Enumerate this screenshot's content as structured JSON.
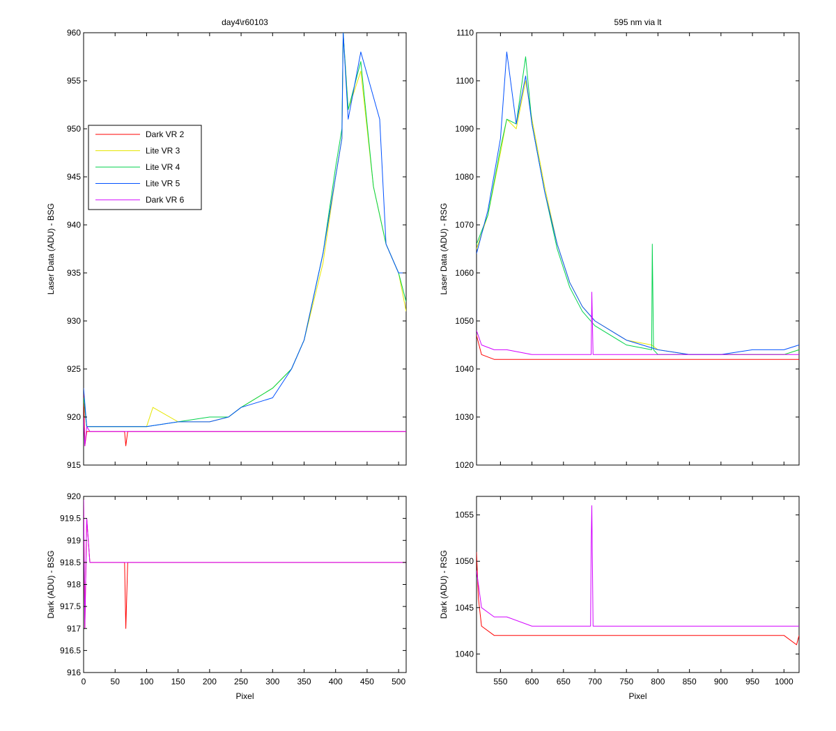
{
  "figure": {
    "colors": {
      "Dark VR 2": "#ff0000",
      "Lite VR 3": "#e6e600",
      "Lite VR 4": "#00d24b",
      "Lite VR 5": "#0050ff",
      "Dark VR 6": "#d200ff"
    }
  },
  "chart_data": [
    {
      "id": "top-left",
      "type": "line",
      "title": "day4\\r60103",
      "xlabel": "",
      "ylabel": "Laser Data (ADU) - BSG",
      "xlim": [
        0,
        512
      ],
      "ylim": [
        915,
        960
      ],
      "xticks": [
        0,
        50,
        100,
        150,
        200,
        250,
        300,
        350,
        400,
        450,
        500
      ],
      "xticklabels_visible": false,
      "yticks": [
        915,
        920,
        925,
        930,
        935,
        940,
        945,
        950,
        955,
        960
      ],
      "legend": {
        "placement": "upper-left",
        "entries": [
          "Dark VR 2",
          "Lite VR 3",
          "Lite VR 4",
          "Lite VR 5",
          "Dark VR 6"
        ]
      },
      "series": [
        {
          "name": "Dark VR 2",
          "x": [
            0,
            2,
            5,
            10,
            30,
            65,
            67,
            70,
            100,
            150,
            200,
            250,
            300,
            350,
            400,
            450,
            500,
            512
          ],
          "y": [
            923,
            917,
            918.5,
            918.5,
            918.5,
            918.5,
            917,
            918.5,
            918.5,
            918.5,
            918.5,
            918.5,
            918.5,
            918.5,
            918.5,
            918.5,
            918.5,
            918.5
          ]
        },
        {
          "name": "Lite VR 3",
          "x": [
            0,
            5,
            50,
            100,
            110,
            150,
            200,
            230,
            250,
            300,
            330,
            350,
            380,
            400,
            410,
            412,
            420,
            440,
            460,
            480,
            500,
            512
          ],
          "y": [
            922,
            919,
            919,
            919,
            921,
            919.5,
            919.5,
            920,
            921,
            923,
            925,
            928,
            936,
            945,
            949,
            960,
            952,
            956,
            944,
            938,
            935,
            931
          ]
        },
        {
          "name": "Lite VR 4",
          "x": [
            0,
            5,
            50,
            100,
            150,
            200,
            230,
            250,
            300,
            330,
            350,
            380,
            400,
            410,
            412,
            420,
            440,
            460,
            480,
            500,
            512
          ],
          "y": [
            922,
            919,
            919,
            919,
            919.5,
            920,
            920,
            921,
            923,
            925,
            928,
            937,
            946,
            950,
            960,
            952,
            957,
            944,
            938,
            935,
            932
          ]
        },
        {
          "name": "Lite VR 5",
          "x": [
            0,
            5,
            50,
            100,
            150,
            200,
            230,
            250,
            300,
            330,
            350,
            380,
            400,
            410,
            412,
            420,
            440,
            470,
            480,
            500,
            512
          ],
          "y": [
            923,
            919,
            919,
            919,
            919.5,
            919.5,
            920,
            921,
            922,
            925,
            928,
            937,
            945,
            949,
            960,
            951,
            958,
            951,
            938,
            935,
            935
          ]
        },
        {
          "name": "Dark VR 6",
          "x": [
            0,
            2,
            5,
            10,
            50,
            100,
            150,
            200,
            250,
            300,
            350,
            400,
            450,
            500,
            512
          ],
          "y": [
            920,
            917,
            919,
            918.5,
            918.5,
            918.5,
            918.5,
            918.5,
            918.5,
            918.5,
            918.5,
            918.5,
            918.5,
            918.5,
            918.5
          ]
        }
      ]
    },
    {
      "id": "top-right",
      "type": "line",
      "title": "595 nm via lt",
      "xlabel": "",
      "ylabel": "Laser Data (ADU) - RSG",
      "xlim": [
        512,
        1024
      ],
      "ylim": [
        1020,
        1110
      ],
      "xticks": [
        550,
        600,
        650,
        700,
        750,
        800,
        850,
        900,
        950,
        1000
      ],
      "xticklabels_visible": false,
      "yticks": [
        1020,
        1030,
        1040,
        1050,
        1060,
        1070,
        1080,
        1090,
        1100,
        1110
      ],
      "series": [
        {
          "name": "Dark VR 2",
          "x": [
            512,
            520,
            540,
            600,
            650,
            700,
            750,
            800,
            850,
            900,
            950,
            1000,
            1024
          ],
          "y": [
            1047,
            1043,
            1042,
            1042,
            1042,
            1042,
            1042,
            1042,
            1042,
            1042,
            1042,
            1042,
            1042
          ]
        },
        {
          "name": "Lite VR 3",
          "x": [
            512,
            530,
            550,
            560,
            575,
            590,
            600,
            620,
            640,
            660,
            680,
            700,
            750,
            790,
            800,
            850,
            900,
            950,
            1000,
            1024
          ],
          "y": [
            1065,
            1072,
            1085,
            1092,
            1090,
            1100,
            1092,
            1078,
            1066,
            1058,
            1053,
            1050,
            1046,
            1045,
            1044,
            1043,
            1043,
            1043,
            1043,
            1044
          ]
        },
        {
          "name": "Lite VR 4",
          "x": [
            512,
            530,
            550,
            560,
            575,
            590,
            600,
            620,
            640,
            660,
            680,
            700,
            750,
            790,
            791,
            793,
            800,
            850,
            900,
            950,
            1000,
            1024
          ],
          "y": [
            1066,
            1072,
            1086,
            1092,
            1091,
            1105,
            1091,
            1077,
            1065,
            1057,
            1052,
            1049,
            1045,
            1044,
            1066,
            1044,
            1043,
            1043,
            1043,
            1043,
            1043,
            1044
          ]
        },
        {
          "name": "Lite VR 5",
          "x": [
            512,
            530,
            550,
            560,
            575,
            590,
            600,
            620,
            640,
            660,
            680,
            700,
            750,
            800,
            850,
            900,
            950,
            1000,
            1024
          ],
          "y": [
            1064,
            1073,
            1088,
            1106,
            1091,
            1101,
            1091,
            1077,
            1066,
            1058,
            1053,
            1050,
            1046,
            1044,
            1043,
            1043,
            1044,
            1044,
            1045
          ]
        },
        {
          "name": "Dark VR 6",
          "x": [
            512,
            520,
            540,
            560,
            600,
            650,
            694,
            695,
            697,
            700,
            750,
            800,
            850,
            900,
            950,
            1000,
            1024
          ],
          "y": [
            1048,
            1045,
            1044,
            1044,
            1043,
            1043,
            1043,
            1056,
            1043,
            1043,
            1043,
            1043,
            1043,
            1043,
            1043,
            1043,
            1043
          ]
        }
      ]
    },
    {
      "id": "bottom-left",
      "type": "line",
      "title": "",
      "xlabel": "Pixel",
      "ylabel": "Dark (ADU) - BSG",
      "xlim": [
        0,
        512
      ],
      "ylim": [
        916,
        920
      ],
      "xticks": [
        0,
        50,
        100,
        150,
        200,
        250,
        300,
        350,
        400,
        450,
        500
      ],
      "xticklabels_visible": true,
      "yticks": [
        916,
        916.5,
        917,
        917.5,
        918,
        918.5,
        919,
        919.5,
        920
      ],
      "series": [
        {
          "name": "Dark VR 2",
          "x": [
            0,
            2,
            5,
            10,
            30,
            65,
            67,
            70,
            100,
            150,
            200,
            250,
            300,
            350,
            400,
            450,
            500,
            512
          ],
          "y": [
            920,
            917,
            919.5,
            918.5,
            918.5,
            918.5,
            917,
            918.5,
            918.5,
            918.5,
            918.5,
            918.5,
            918.5,
            918.5,
            918.5,
            918.5,
            918.5,
            918.5
          ]
        },
        {
          "name": "Dark VR 6",
          "x": [
            0,
            2,
            5,
            10,
            50,
            100,
            150,
            200,
            250,
            300,
            350,
            400,
            450,
            500,
            512
          ],
          "y": [
            920,
            917,
            919.5,
            918.5,
            918.5,
            918.5,
            918.5,
            918.5,
            918.5,
            918.5,
            918.5,
            918.5,
            918.5,
            918.5,
            918.5
          ]
        }
      ]
    },
    {
      "id": "bottom-right",
      "type": "line",
      "title": "",
      "xlabel": "Pixel",
      "ylabel": "Dark (ADU) - RSG",
      "xlim": [
        512,
        1024
      ],
      "ylim": [
        1038,
        1057
      ],
      "xticks": [
        550,
        600,
        650,
        700,
        750,
        800,
        850,
        900,
        950,
        1000
      ],
      "xticklabels_visible": true,
      "yticks": [
        1040,
        1045,
        1050,
        1055
      ],
      "series": [
        {
          "name": "Dark VR 2",
          "x": [
            512,
            515,
            520,
            540,
            560,
            600,
            650,
            700,
            750,
            800,
            850,
            900,
            950,
            1000,
            1020,
            1024
          ],
          "y": [
            1051,
            1046,
            1043,
            1042,
            1042,
            1042,
            1042,
            1042,
            1042,
            1042,
            1042,
            1042,
            1042,
            1042,
            1041,
            1042
          ]
        },
        {
          "name": "Dark VR 6",
          "x": [
            512,
            520,
            540,
            560,
            600,
            650,
            693,
            694,
            695,
            697,
            700,
            750,
            800,
            850,
            900,
            950,
            1000,
            1024
          ],
          "y": [
            1049,
            1045,
            1044,
            1044,
            1043,
            1043,
            1043,
            1052,
            1056,
            1043,
            1043,
            1043,
            1043,
            1043,
            1043,
            1043,
            1043,
            1043
          ]
        }
      ]
    }
  ]
}
